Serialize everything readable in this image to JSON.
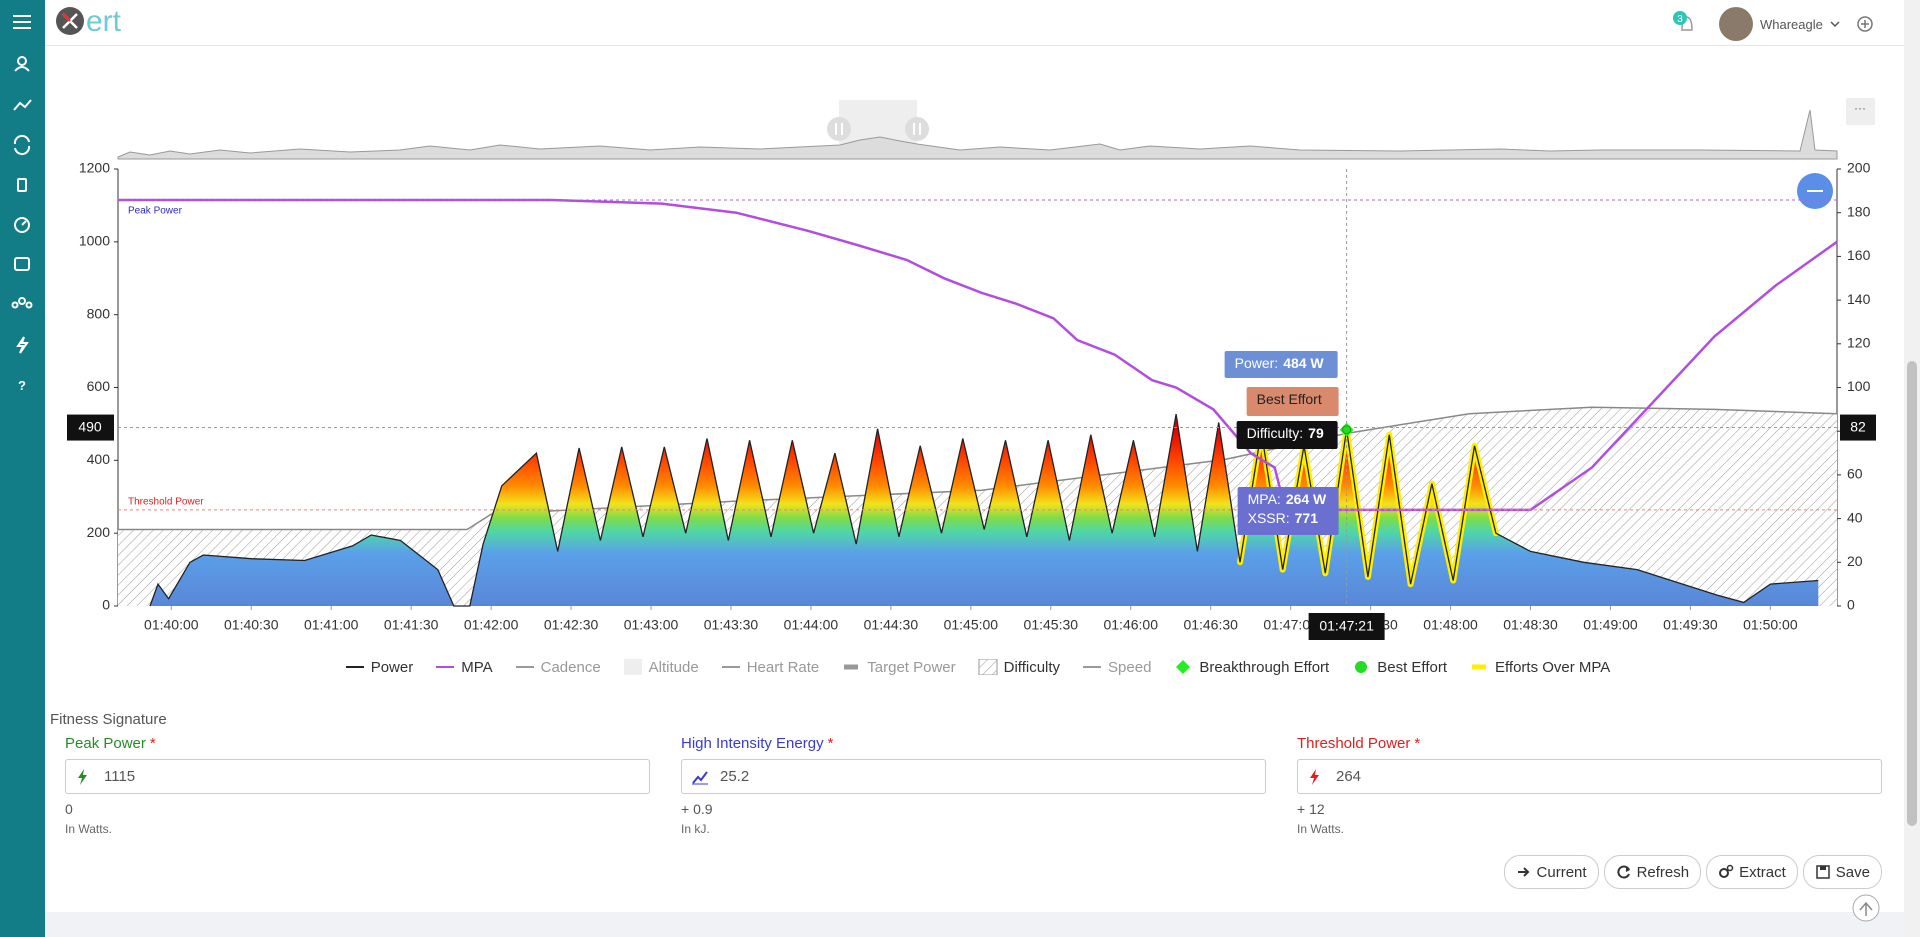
{
  "header": {
    "logo": "ert",
    "notifications": "3",
    "user": "Whareagle"
  },
  "chart": {
    "type": "line",
    "xlim": [
      5980,
      6625
    ],
    "xticks": [
      {
        "value": 6000,
        "label": "01:40:00"
      },
      {
        "value": 6030,
        "label": "01:40:30"
      },
      {
        "value": 6060,
        "label": "01:41:00"
      },
      {
        "value": 6090,
        "label": "01:41:30"
      },
      {
        "value": 6120,
        "label": "01:42:00"
      },
      {
        "value": 6150,
        "label": "01:42:30"
      },
      {
        "value": 6180,
        "label": "01:43:00"
      },
      {
        "value": 6210,
        "label": "01:43:30"
      },
      {
        "value": 6240,
        "label": "01:44:00"
      },
      {
        "value": 6270,
        "label": "01:44:30"
      },
      {
        "value": 6300,
        "label": "01:45:00"
      },
      {
        "value": 6330,
        "label": "01:45:30"
      },
      {
        "value": 6360,
        "label": "01:46:00"
      },
      {
        "value": 6390,
        "label": "01:46:30"
      },
      {
        "value": 6420,
        "label": "01:47:00"
      },
      {
        "value": 6450,
        "label": "01:47:30"
      },
      {
        "value": 6480,
        "label": "01:48:00"
      },
      {
        "value": 6510,
        "label": "01:48:30"
      },
      {
        "value": 6540,
        "label": "01:49:00"
      },
      {
        "value": 6570,
        "label": "01:49:30"
      },
      {
        "value": 6600,
        "label": "01:50:00"
      }
    ],
    "ylim": [
      0,
      1200
    ],
    "yticks": [
      0,
      200,
      400,
      600,
      800,
      1000,
      1200
    ],
    "y2lim": [
      0,
      200
    ],
    "y2ticks": [
      0,
      20,
      40,
      60,
      80,
      100,
      120,
      140,
      160,
      180,
      200
    ],
    "series": [
      {
        "name": "Power",
        "color": "#222222",
        "symbol": "line",
        "x": [
          5992,
          5995,
          5999,
          6007,
          6012,
          6030,
          6050,
          6068,
          6075,
          6086,
          6100,
          6106,
          6112,
          6117,
          6124,
          6137,
          6145,
          6153,
          6161,
          6169,
          6177,
          6185,
          6193,
          6201,
          6209,
          6217,
          6225,
          6233,
          6241,
          6249,
          6257,
          6265,
          6273,
          6281,
          6289,
          6297,
          6305,
          6313,
          6321,
          6329,
          6337,
          6345,
          6353,
          6361,
          6369,
          6377,
          6385,
          6393,
          6401,
          6409,
          6417,
          6425,
          6433,
          6441,
          6449,
          6457,
          6465,
          6473,
          6481,
          6489,
          6497,
          6510,
          6530,
          6550,
          6580,
          6590,
          6600,
          6618
        ],
        "values": [
          0,
          60,
          20,
          120,
          140,
          130,
          125,
          165,
          195,
          180,
          100,
          0,
          0,
          170,
          330,
          420,
          150,
          434,
          180,
          437,
          190,
          437,
          200,
          460,
          180,
          455,
          190,
          455,
          200,
          420,
          170,
          487,
          190,
          440,
          200,
          460,
          210,
          455,
          190,
          455,
          180,
          470,
          200,
          455,
          190,
          527,
          150,
          504,
          120,
          480,
          100,
          440,
          90,
          484,
          80,
          470,
          60,
          336,
          70,
          440,
          200,
          150,
          120,
          100,
          30,
          10,
          60,
          70
        ]
      },
      {
        "name": "MPA",
        "color": "#b14ee0",
        "symbol": "line",
        "x": [
          5980,
          6143,
          6184,
          6212,
          6239,
          6258,
          6276,
          6290,
          6304,
          6317,
          6331,
          6340,
          6354,
          6368,
          6377,
          6391,
          6405,
          6414,
          6418,
          6510,
          6533,
          6556,
          6579,
          6602,
          6625
        ],
        "values": [
          1115,
          1115,
          1105,
          1080,
          1030,
          990,
          950,
          900,
          860,
          830,
          790,
          730,
          690,
          620,
          600,
          540,
          420,
          380,
          264,
          264,
          380,
          560,
          740,
          880,
          1000
        ]
      },
      {
        "name": "Cadence",
        "color": "#999999",
        "symbol": "line",
        "hidden": true
      },
      {
        "name": "Altitude",
        "color": "#eeeeee",
        "symbol": "square",
        "hidden": true
      },
      {
        "name": "Heart Rate",
        "color": "#999999",
        "symbol": "line",
        "hidden": true
      },
      {
        "name": "Target Power",
        "color": "#999999",
        "symbol": "thick",
        "hidden": true
      },
      {
        "name": "Difficulty",
        "color": "#888888",
        "symbol": "hatch",
        "axis": "y2",
        "x": [
          5980,
          6111,
          6120,
          6212,
          6304,
          6395,
          6441,
          6487,
          6533,
          6579,
          6625
        ],
        "values": [
          35,
          35,
          42,
          48,
          53,
          67,
          79,
          88,
          91,
          90,
          88
        ]
      },
      {
        "name": "Speed",
        "color": "#999999",
        "symbol": "line",
        "hidden": true
      }
    ],
    "efforts": [
      {
        "name": "Breakthrough Effort",
        "color": "#22ee22",
        "shape": "diamond"
      },
      {
        "name": "Best Effort",
        "color": "#22dd22",
        "shape": "circle"
      },
      {
        "name": "Efforts Over MPA",
        "color": "#ffee00",
        "shape": "thick"
      }
    ],
    "reference_lines": [
      {
        "label": "Peak Power",
        "value": 1115,
        "color": "#b060e0",
        "label_color": "#2a2acc"
      },
      {
        "label": "Threshold Power",
        "value": 264,
        "color": "#f08080",
        "label_color": "#e02020"
      }
    ],
    "crosshair": {
      "x": {
        "value": 6441,
        "label": "01:47:21"
      },
      "y": 490,
      "y2": 82
    },
    "tooltips": {
      "power_label": "Power:",
      "power": "484 W",
      "best_effort": "Best Effort",
      "difficulty_label": "Difficulty:",
      "difficulty": "79",
      "mpa_label": "MPA:",
      "mpa": "264 W",
      "xssr_label": "XSSR:",
      "xssr": "771"
    }
  },
  "fitness_signature": {
    "title": "Fitness Signature",
    "required_mark": "*",
    "fields": [
      {
        "label": "Peak Power",
        "color": "#2a8a2a",
        "value": "1115",
        "change": "0",
        "unit": "In Watts."
      },
      {
        "label": "High Intensity Energy",
        "color": "#3a3ad0",
        "value": "25.2",
        "change": "+ 0.9",
        "unit": "In kJ."
      },
      {
        "label": "Threshold Power",
        "color": "#e02020",
        "value": "264",
        "change": "+ 12",
        "unit": "In Watts."
      }
    ],
    "buttons": [
      "Current",
      "Refresh",
      "Extract",
      "Save"
    ]
  }
}
